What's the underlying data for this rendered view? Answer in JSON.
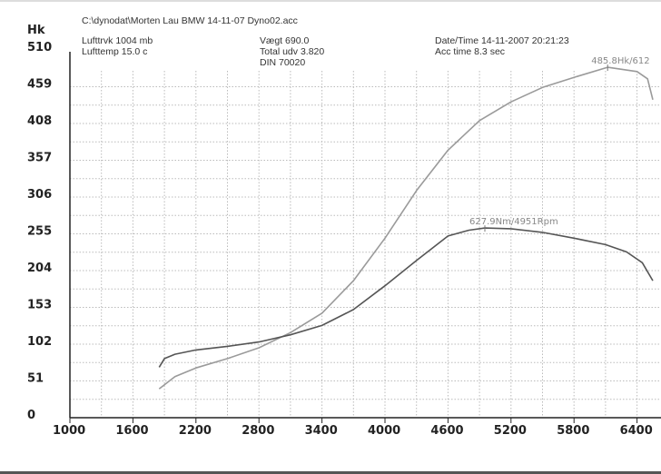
{
  "header": {
    "file": "C:\\dynodat\\Morten Lau BMW 14-11-07 Dyno02.acc",
    "lufttryk": "Lufttrvk  1004 mb",
    "lufttemp": "Lufttemp  15.0 c",
    "vaegt": "Vægt    690.0",
    "total_udv": "Total udv 3.820",
    "din": "DIN 70020",
    "datetime": "Date/Time  14-11-2007 20:21:23",
    "acc_time": "Acc time  8.3 sec"
  },
  "chart_data": {
    "type": "line",
    "ylabel": "Hk",
    "xlim": [
      1000,
      6700
    ],
    "ylim": [
      0,
      510
    ],
    "x_ticks": [
      "1000",
      "1600",
      "2200",
      "2800",
      "3400",
      "4000",
      "4600",
      "5200",
      "5800",
      "6400"
    ],
    "y_ticks": [
      "0",
      "51",
      "102",
      "153",
      "204",
      "255",
      "306",
      "357",
      "408",
      "459",
      "510"
    ],
    "grid": true,
    "colors": {
      "power": "#9a9a9a",
      "torque": "#555555"
    },
    "series": [
      {
        "id": "power",
        "x": [
          1850,
          2000,
          2200,
          2500,
          2800,
          3100,
          3400,
          3700,
          4000,
          4300,
          4600,
          4900,
          5200,
          5500,
          5800,
          6120,
          6400,
          6500,
          6550
        ],
        "y": [
          40,
          57,
          69,
          82,
          97,
          118,
          145,
          190,
          249,
          315,
          371,
          412,
          438,
          458,
          472,
          486,
          480,
          470,
          441
        ]
      },
      {
        "id": "torque",
        "x": [
          1850,
          1900,
          2000,
          2200,
          2500,
          2800,
          3100,
          3400,
          3700,
          4000,
          4300,
          4600,
          4800,
          4951,
          5200,
          5500,
          5800,
          6100,
          6300,
          6450,
          6550
        ],
        "y": [
          70,
          82,
          88,
          94,
          99,
          105,
          115,
          128,
          150,
          183,
          218,
          252,
          260,
          263,
          262,
          257,
          249,
          240,
          230,
          215,
          190
        ]
      }
    ],
    "annotations": [
      {
        "series": "power",
        "text": "485.8Hk/612",
        "x": 6120,
        "y": 486
      },
      {
        "series": "torque",
        "text": "627.9Nm/4951Rpm",
        "x": 4951,
        "y": 263
      }
    ]
  }
}
